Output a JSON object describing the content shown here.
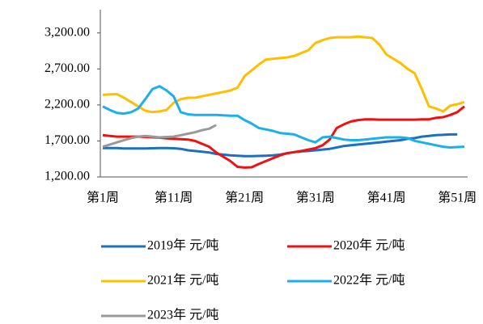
{
  "chart_data": {
    "type": "line",
    "categories": [
      "第1周",
      null,
      null,
      null,
      null,
      null,
      null,
      null,
      null,
      null,
      "第11周",
      null,
      null,
      null,
      null,
      null,
      null,
      null,
      null,
      null,
      "第21周",
      null,
      null,
      null,
      null,
      null,
      null,
      null,
      null,
      null,
      "第31周",
      null,
      null,
      null,
      null,
      null,
      null,
      null,
      null,
      null,
      "第41周",
      null,
      null,
      null,
      null,
      null,
      null,
      null,
      null,
      null,
      "第51周",
      null
    ],
    "ylim": [
      1200,
      3500
    ],
    "yticks": [
      {
        "value": 1200,
        "label": "1,200.00"
      },
      {
        "value": 1700,
        "label": "1,700.00"
      },
      {
        "value": 2200,
        "label": "2,200.00"
      },
      {
        "value": 2700,
        "label": "2,700.00"
      },
      {
        "value": 3200,
        "label": "3,200.00"
      }
    ],
    "series": [
      {
        "name": "2019年 元/吨",
        "color": "#1f6fc0",
        "values": [
          1600,
          1600,
          1600,
          1595,
          1595,
          1595,
          1595,
          1598,
          1600,
          1600,
          1598,
          1590,
          1570,
          1560,
          1550,
          1540,
          1520,
          1510,
          1500,
          1495,
          1490,
          1490,
          1492,
          1495,
          1500,
          1510,
          1530,
          1545,
          1555,
          1560,
          1570,
          1580,
          1590,
          1610,
          1630,
          1640,
          1650,
          1660,
          1670,
          1680,
          1690,
          1700,
          1710,
          1730,
          1740,
          1760,
          1770,
          1780,
          1785,
          1790,
          1790,
          null
        ]
      },
      {
        "name": "2020年 元/吨",
        "color": "#ee1111",
        "values": [
          1780,
          1770,
          1760,
          1760,
          1760,
          1760,
          1755,
          1750,
          1745,
          1735,
          1730,
          1725,
          1720,
          1700,
          1660,
          1620,
          1540,
          1480,
          1420,
          1340,
          1330,
          1335,
          1380,
          1420,
          1460,
          1500,
          1530,
          1545,
          1560,
          1580,
          1600,
          1640,
          1720,
          1880,
          1930,
          1970,
          1990,
          2000,
          2000,
          1995,
          1995,
          1995,
          1995,
          1995,
          1995,
          2000,
          2000,
          2020,
          2030,
          2060,
          2100,
          2180
        ]
      },
      {
        "name": "2021年 元/吨",
        "color": "#ffbf00",
        "values": [
          2340,
          2345,
          2350,
          2300,
          2240,
          2180,
          2120,
          2100,
          2110,
          2130,
          2230,
          2280,
          2300,
          2300,
          2320,
          2340,
          2360,
          2380,
          2400,
          2440,
          2600,
          2680,
          2760,
          2830,
          2840,
          2850,
          2860,
          2880,
          2920,
          2960,
          3060,
          3100,
          3130,
          3140,
          3140,
          3140,
          3150,
          3140,
          3130,
          3040,
          2900,
          2840,
          2780,
          2700,
          2640,
          2420,
          2180,
          2150,
          2110,
          2190,
          2210,
          2240
        ]
      },
      {
        "name": "2022年 元/吨",
        "color": "#1ab0ea",
        "values": [
          2180,
          2130,
          2090,
          2080,
          2100,
          2150,
          2280,
          2420,
          2460,
          2400,
          2320,
          2100,
          2070,
          2060,
          2060,
          2060,
          2060,
          2055,
          2050,
          2050,
          1990,
          1940,
          1880,
          1860,
          1840,
          1810,
          1800,
          1790,
          1750,
          1710,
          1680,
          1750,
          1760,
          1740,
          1720,
          1710,
          1710,
          1720,
          1730,
          1740,
          1750,
          1750,
          1750,
          1740,
          1700,
          1680,
          1660,
          1640,
          1620,
          1610,
          1615,
          1620
        ]
      },
      {
        "name": "2023年 元/吨",
        "color": "#999999",
        "values": [
          1620,
          1650,
          1680,
          1710,
          1740,
          1760,
          1770,
          1760,
          1750,
          1755,
          1760,
          1780,
          1800,
          1820,
          1850,
          1870,
          1920,
          null,
          null,
          null,
          null,
          null,
          null,
          null,
          null,
          null,
          null,
          null,
          null,
          null,
          null,
          null,
          null,
          null,
          null,
          null,
          null,
          null,
          null,
          null,
          null,
          null,
          null,
          null,
          null,
          null,
          null,
          null,
          null,
          null,
          null,
          null
        ]
      }
    ]
  }
}
